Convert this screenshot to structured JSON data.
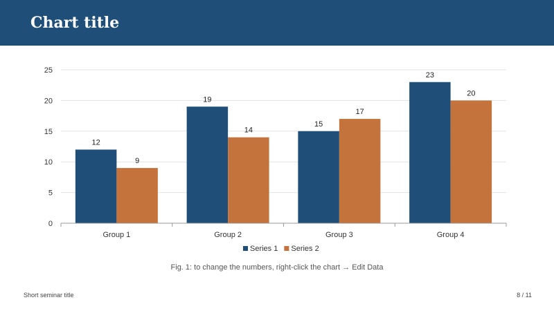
{
  "slide": {
    "title": "Chart title",
    "caption": "Fig. 1: to change the numbers, right-click the chart → Edit Data",
    "footer_left": "Short seminar title",
    "footer_right": "8 / 11"
  },
  "colors": {
    "header": "#1f4e79",
    "series1": "#1f4e79",
    "series2": "#c5733d",
    "grid": "#e3e3e3"
  },
  "chart_data": {
    "type": "bar",
    "categories": [
      "Group 1",
      "Group 2",
      "Group 3",
      "Group 4"
    ],
    "series": [
      {
        "name": "Series 1",
        "values": [
          12,
          19,
          15,
          23
        ]
      },
      {
        "name": "Series 2",
        "values": [
          9,
          14,
          17,
          20
        ]
      }
    ],
    "yticks": [
      0,
      5,
      10,
      15,
      20,
      25
    ],
    "ylim": [
      0,
      25
    ],
    "grid": true,
    "legend_position": "bottom",
    "data_labels": true
  }
}
